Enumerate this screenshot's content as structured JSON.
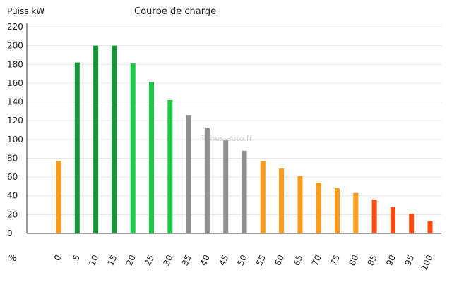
{
  "chart_data": {
    "type": "bar",
    "title": "Courbe de charge",
    "ylabel": "Puiss kW",
    "xlabel": "%",
    "watermark": "Fiches-auto.fr",
    "ylim": [
      0,
      220
    ],
    "yticks": [
      0,
      20,
      40,
      60,
      80,
      100,
      120,
      140,
      160,
      180,
      200,
      220
    ],
    "grid": true,
    "categories": [
      "0",
      "5",
      "10",
      "15",
      "20",
      "25",
      "30",
      "35",
      "40",
      "45",
      "50",
      "55",
      "60",
      "65",
      "70",
      "75",
      "80",
      "85",
      "90",
      "95",
      "100"
    ],
    "values": [
      77,
      182,
      200,
      200,
      181,
      161,
      142,
      126,
      112,
      99,
      88,
      77,
      69,
      61,
      54,
      48,
      43,
      36,
      28,
      21,
      13
    ],
    "colors": [
      "#ff9a1a",
      "#139933",
      "#139933",
      "#139933",
      "#1ec94a",
      "#1ec94a",
      "#1ec94a",
      "#8f8f8f",
      "#8f8f8f",
      "#8f8f8f",
      "#8f8f8f",
      "#ff9a1a",
      "#ff9a1a",
      "#ff9a1a",
      "#ff9a1a",
      "#ff9a1a",
      "#ff9a1a",
      "#ff4a10",
      "#ff4a10",
      "#ff4a10",
      "#ff4a10"
    ]
  }
}
